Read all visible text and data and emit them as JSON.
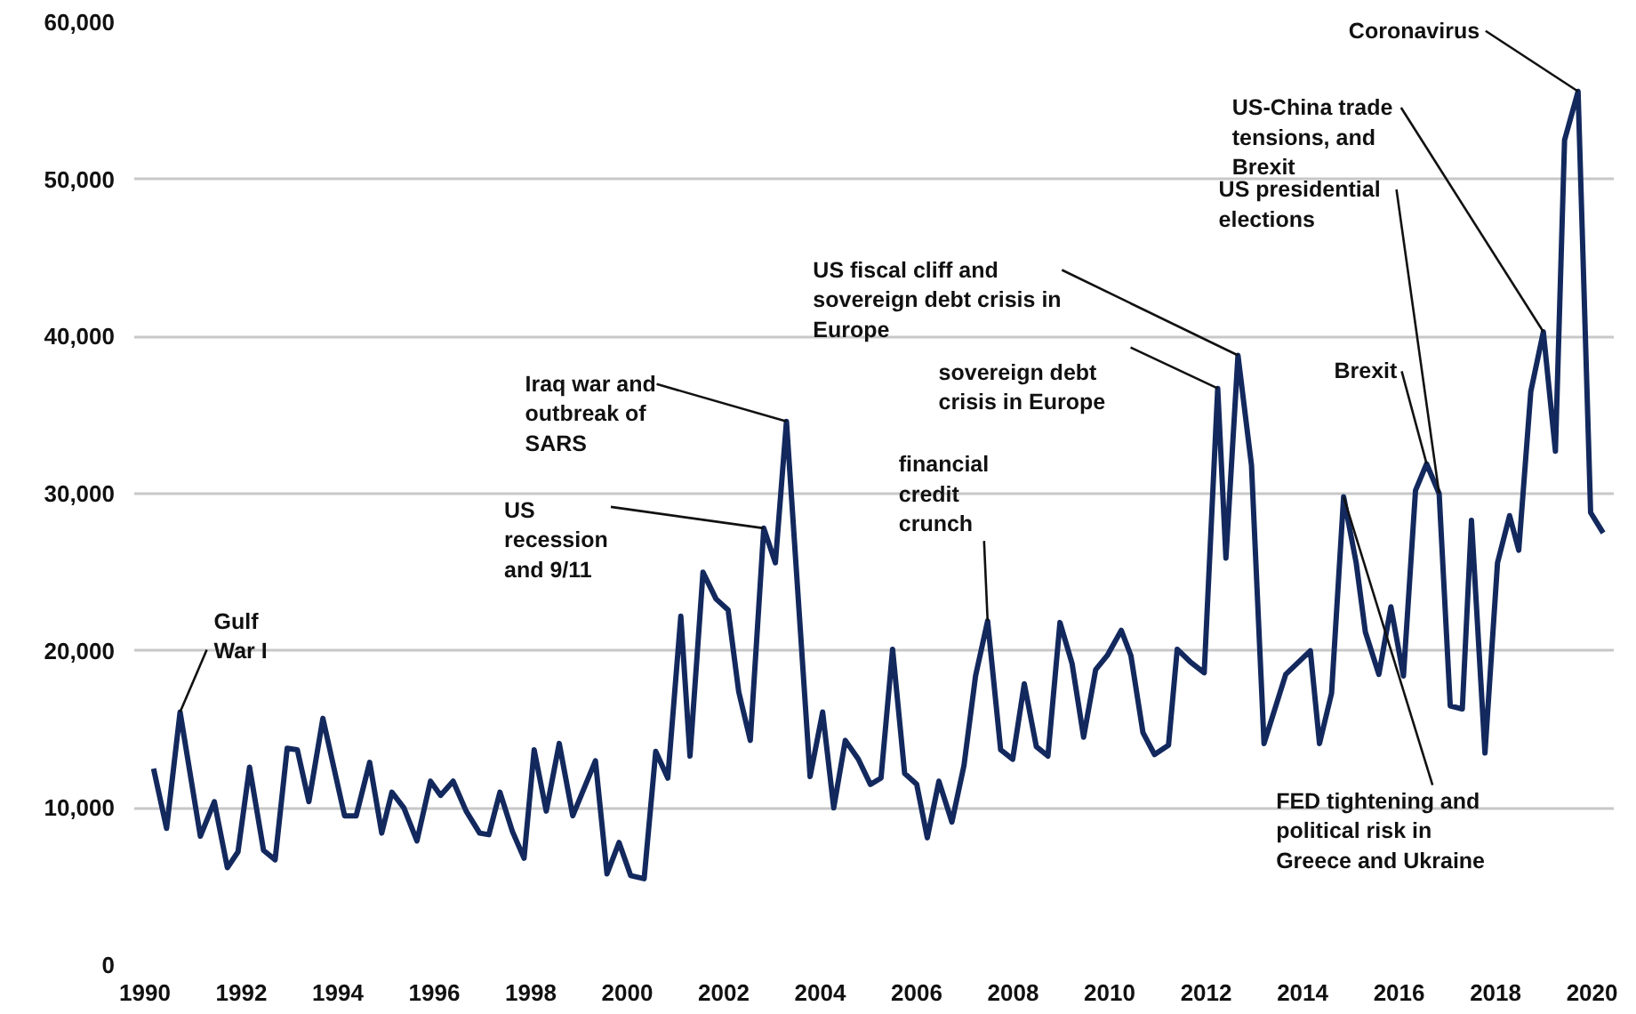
{
  "chart_data": {
    "type": "line",
    "x": [
      1990.18,
      1990.45,
      1990.73,
      1991.15,
      1991.44,
      1991.71,
      1991.93,
      1992.17,
      1992.46,
      1992.7,
      1992.95,
      1993.16,
      1993.4,
      1993.69,
      1994.14,
      1994.38,
      1994.66,
      1994.91,
      1995.12,
      1995.37,
      1995.64,
      1995.92,
      1996.13,
      1996.39,
      1996.66,
      1996.94,
      1997.13,
      1997.36,
      1997.62,
      1997.86,
      1998.07,
      1998.32,
      1998.59,
      1998.87,
      1999.34,
      1999.58,
      1999.83,
      2000.07,
      2000.35,
      2000.59,
      2000.84,
      2001.11,
      2001.3,
      2001.57,
      2001.84,
      2002.09,
      2002.31,
      2002.55,
      2002.83,
      2003.07,
      2003.3,
      2003.79,
      2004.05,
      2004.28,
      2004.52,
      2004.79,
      2005.04,
      2005.26,
      2005.5,
      2005.75,
      2006.0,
      2006.22,
      2006.46,
      2006.73,
      2006.98,
      2007.22,
      2007.47,
      2007.74,
      2007.99,
      2008.23,
      2008.48,
      2008.72,
      2008.97,
      2009.22,
      2009.46,
      2009.71,
      2009.95,
      2010.24,
      2010.44,
      2010.69,
      2010.93,
      2011.22,
      2011.4,
      2011.67,
      2011.96,
      2012.24,
      2012.41,
      2012.66,
      2012.94,
      2013.2,
      2013.65,
      2014.16,
      2014.35,
      2014.6,
      2014.85,
      2015.11,
      2015.3,
      2015.58,
      2015.83,
      2016.09,
      2016.34,
      2016.57,
      2016.83,
      2017.06,
      2017.31,
      2017.5,
      2017.78,
      2018.04,
      2018.29,
      2018.48,
      2018.73,
      2018.99,
      2019.24,
      2019.43,
      2019.71,
      2019.97,
      2020.23
    ],
    "series": [
      {
        "color": "#13295e",
        "values": [
          12500,
          8700,
          16100,
          8200,
          10400,
          6200,
          7200,
          12600,
          7300,
          6700,
          13800,
          13700,
          10400,
          15700,
          9500,
          9500,
          12900,
          8400,
          11000,
          10000,
          7900,
          11700,
          10800,
          11700,
          9800,
          8400,
          8300,
          11000,
          8500,
          6800,
          13700,
          9800,
          14100,
          9500,
          13000,
          5800,
          7800,
          5700,
          5500,
          13600,
          11900,
          22200,
          13300,
          25000,
          23300,
          22600,
          17400,
          14300,
          27800,
          25600,
          34600,
          12000,
          16100,
          10000,
          14300,
          13100,
          11500,
          11900,
          20100,
          12200,
          11500,
          8100,
          11700,
          9100,
          12700,
          18400,
          21900,
          13700,
          13100,
          17900,
          13900,
          13300,
          21800,
          19200,
          14500,
          18800,
          19700,
          21300,
          19700,
          14800,
          13400,
          14000,
          20100,
          19300,
          18600,
          36700,
          25900,
          38800,
          31800,
          14100,
          18500,
          20000,
          14100,
          17300,
          29800,
          25600,
          21200,
          18500,
          22800,
          18400,
          30200,
          31900,
          30000,
          16500,
          16300,
          28300,
          13500,
          25600,
          28600,
          26400,
          36500,
          40300,
          32700,
          52500,
          55600,
          28800,
          27500
        ]
      }
    ],
    "xlim": [
      1989.78,
      2020.45
    ],
    "ylim": [
      0,
      60000
    ],
    "xticks": [
      1990,
      1992,
      1994,
      1996,
      1998,
      2000,
      2002,
      2004,
      2006,
      2008,
      2010,
      2012,
      2014,
      2016,
      2018,
      2020
    ],
    "yticks": [
      {
        "value": 0,
        "label": "0"
      },
      {
        "value": 10000,
        "label": "10,000"
      },
      {
        "value": 20000,
        "label": "20,000"
      },
      {
        "value": 30000,
        "label": "30,000"
      },
      {
        "value": 40000,
        "label": "40,000"
      },
      {
        "value": 50000,
        "label": "50,000"
      },
      {
        "value": 60000,
        "label": "60,000"
      }
    ],
    "grid": "y",
    "line_style": "solid",
    "annotations": [
      {
        "text": "Gulf\nWar I",
        "x": 1990.73,
        "y": 16100
      },
      {
        "text": "US\nrecession\nand 9/11",
        "x": 2002.83,
        "y": 27800
      },
      {
        "text": "Iraq war and\noutbreak of\nSARS",
        "x": 2003.3,
        "y": 34600
      },
      {
        "text": "financial\ncredit\ncrunch",
        "x": 2007.47,
        "y": 21900
      },
      {
        "text": "sovereign debt\ncrisis in Europe",
        "x": 2012.24,
        "y": 36700
      },
      {
        "text": "US fiscal cliff and\nsovereign debt crisis in\nEurope",
        "x": 2012.66,
        "y": 38800
      },
      {
        "text": "US presidential\nelections",
        "x": 2016.83,
        "y": 30000
      },
      {
        "text": "Brexit",
        "x": 2016.57,
        "y": 31900
      },
      {
        "text": "FED tightening and\npolitical risk in\nGreece and Ukraine",
        "x": 2014.85,
        "y": 29800
      },
      {
        "text": "US-China trade\ntensions, and\nBrexit",
        "x": 2018.99,
        "y": 40300
      },
      {
        "text": "Coronavirus",
        "x": 2019.71,
        "y": 55600
      }
    ]
  }
}
